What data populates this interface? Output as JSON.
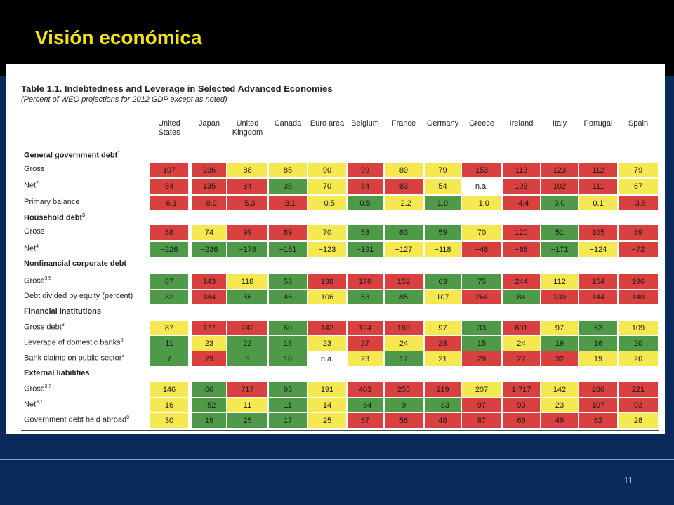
{
  "slide": {
    "title": "Visión económica",
    "page_number": "11"
  },
  "table": {
    "title": "Table 1.1. Indebtedness and Leverage in Selected Advanced Economies",
    "subtitle": "(Percent of WEO projections for 2012 GDP except as noted)",
    "columns": [
      "United States",
      "Japan",
      "United Kingdom",
      "Canada",
      "Euro area",
      "Belgium",
      "France",
      "Germany",
      "Greece",
      "Ireland",
      "Italy",
      "Portugal",
      "Spain"
    ],
    "colors": {
      "R": "#d94040",
      "Y": "#f5e850",
      "G": "#4f9a48",
      "W": "#ffffff"
    },
    "rows": [
      {
        "label": "General government debt",
        "sup": "1",
        "section": true
      },
      {
        "label": "Gross",
        "values": [
          "107",
          "236",
          "88",
          "85",
          "90",
          "99",
          "89",
          "79",
          "153",
          "113",
          "123",
          "112",
          "79"
        ],
        "colors": "RRYYYRYYRRRRY"
      },
      {
        "label": "Net",
        "sup": "2",
        "values": [
          "84",
          "135",
          "84",
          "35",
          "70",
          "84",
          "83",
          "54",
          "n.a.",
          "103",
          "102",
          "111",
          "67"
        ],
        "colors": "RRRGYRRYWRRRY"
      },
      {
        "label": "Primary balance",
        "values": [
          "−6.1",
          "−8.9",
          "−5.3",
          "−3.1",
          "−0.5",
          "0.5",
          "−2.2",
          "1.0",
          "−1.0",
          "−4.4",
          "3.0",
          "0.1",
          "−3.6"
        ],
        "colors": "RRRRYGYGYRGYR"
      },
      {
        "label": "Household debt",
        "sup": "3",
        "section": true
      },
      {
        "label": "Gross",
        "values": [
          "88",
          "74",
          "99",
          "89",
          "70",
          "53",
          "63",
          "59",
          "70",
          "120",
          "51",
          "105",
          "89"
        ],
        "colors": "RYRRYGGGYRGRR"
      },
      {
        "label": "Net",
        "sup": "4",
        "values": [
          "−226",
          "−236",
          "−178",
          "−151",
          "−123",
          "−191",
          "−127",
          "−118",
          "−48",
          "−68",
          "−171",
          "−124",
          "−72"
        ],
        "colors": "GGGGYGYYRRGYR"
      },
      {
        "label": "Nonfinancial corporate debt",
        "section": true
      },
      {
        "label": "Gross",
        "sup": "3,5",
        "values": [
          "87",
          "143",
          "118",
          "53",
          "138",
          "178",
          "152",
          "63",
          "75",
          "244",
          "112",
          "154",
          "196"
        ],
        "colors": "GRYGRRRGGRYRR"
      },
      {
        "label": "Debt divided by equity (percent)",
        "values": [
          "82",
          "184",
          "86",
          "45",
          "106",
          "53",
          "85",
          "107",
          "264",
          "84",
          "139",
          "144",
          "140"
        ],
        "colors": "GRGGYGGYRGRRR"
      },
      {
        "label": "Financial institutions",
        "section": true
      },
      {
        "label": "Gross debt",
        "sup": "3",
        "values": [
          "87",
          "177",
          "742",
          "60",
          "142",
          "124",
          "169",
          "97",
          "33",
          "601",
          "97",
          "63",
          "109"
        ],
        "colors": "YRRGRRRYGRYGY"
      },
      {
        "label": "Leverage of domestic banks",
        "sup": "6",
        "values": [
          "11",
          "23",
          "22",
          "18",
          "23",
          "27",
          "24",
          "28",
          "15",
          "24",
          "19",
          "16",
          "20"
        ],
        "colors": "GYGGYRYRGYGGG"
      },
      {
        "label": "Bank claims on public sector",
        "sup": "3",
        "values": [
          "7",
          "79",
          "8",
          "18",
          "n.a.",
          "23",
          "17",
          "21",
          "29",
          "27",
          "32",
          "19",
          "26"
        ],
        "colors": "GRGGWYGYRRRYY"
      },
      {
        "label": "External liabilities",
        "section": true
      },
      {
        "label": "Gross",
        "sup": "3,7",
        "values": [
          "146",
          "66",
          "717",
          "93",
          "191",
          "403",
          "255",
          "219",
          "207",
          "1,717",
          "142",
          "286",
          "221"
        ],
        "colors": "YGRGYRRRYRYRR"
      },
      {
        "label": "Net",
        "sup": "3,7",
        "values": [
          "16",
          "−52",
          "11",
          "11",
          "14",
          "−64",
          "9",
          "−33",
          "97",
          "93",
          "23",
          "107",
          "93"
        ],
        "colors": "YGYGYGGGRRYRR"
      },
      {
        "label": "Government debt held abroad",
        "sup": "8",
        "values": [
          "30",
          "19",
          "25",
          "17",
          "25",
          "57",
          "56",
          "48",
          "87",
          "66",
          "49",
          "62",
          "28"
        ],
        "colors": "YGGGYRRRRRRRY"
      }
    ]
  }
}
